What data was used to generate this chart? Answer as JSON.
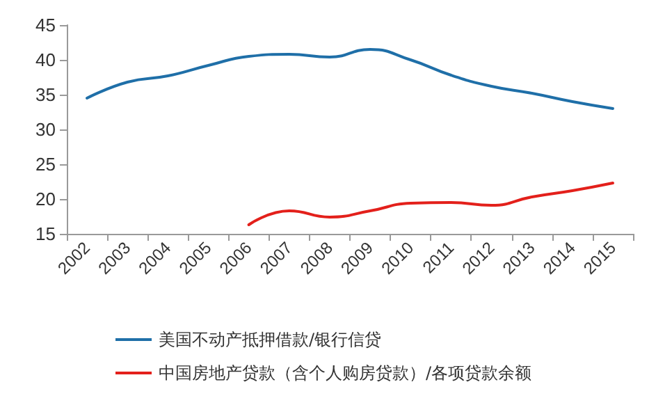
{
  "chart_data": {
    "type": "line",
    "categories": [
      "2002",
      "2003",
      "2004",
      "2005",
      "2006",
      "2007",
      "2008",
      "2009",
      "2010",
      "2011",
      "2012",
      "2013",
      "2014",
      "2015"
    ],
    "series": [
      {
        "name": "美国不动产抵押借款/银行信贷",
        "color": "#1f6fa8",
        "values": [
          34.5,
          36.8,
          37.7,
          39.2,
          40.5,
          40.8,
          40.4,
          41.5,
          40.0,
          37.8,
          36.2,
          35.2,
          34.0,
          33.0
        ]
      },
      {
        "name": "中国房地产贷款（含个人购房贷款）/各项贷款余额",
        "color": "#e3201b",
        "values": [
          null,
          null,
          null,
          null,
          16.3,
          18.3,
          17.4,
          18.3,
          19.4,
          19.5,
          19.1,
          20.3,
          21.2,
          22.3
        ]
      }
    ],
    "ylim": [
      15,
      45
    ],
    "yticks": [
      15,
      20,
      25,
      30,
      35,
      40,
      45
    ],
    "grid": false,
    "legend": "bottom left",
    "marker": "none",
    "line_style": "solid"
  }
}
